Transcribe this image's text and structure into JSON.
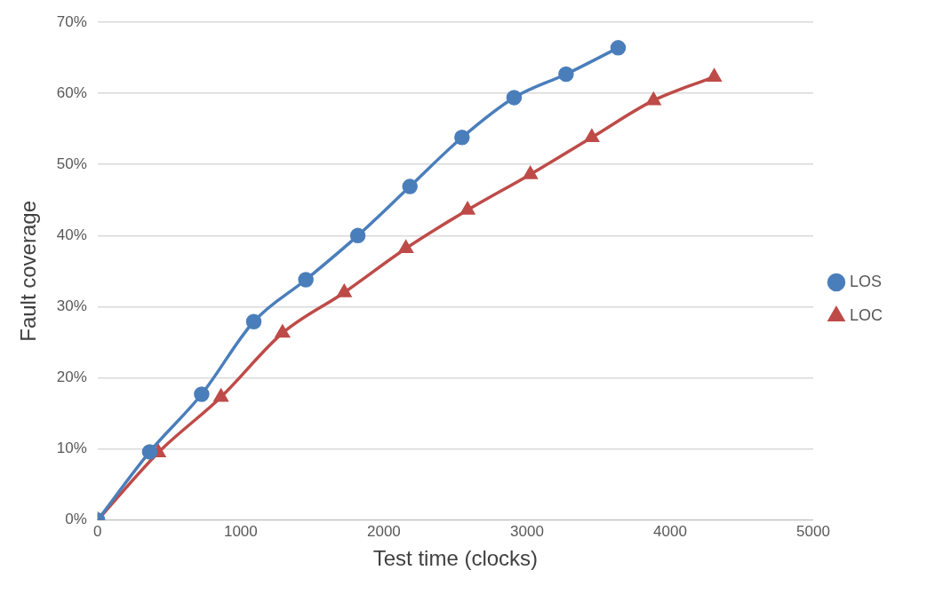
{
  "chart_data": {
    "type": "line",
    "xlabel": "Test time (clocks)",
    "ylabel": "Fault coverage",
    "xlim": [
      0,
      5000
    ],
    "xticks": [
      0,
      1000,
      2000,
      3000,
      4000,
      5000
    ],
    "ylim": [
      0,
      70
    ],
    "yticks": [
      {
        "value": 0,
        "label": "0%"
      },
      {
        "value": 10,
        "label": "10%"
      },
      {
        "value": 20,
        "label": "20%"
      },
      {
        "value": 30,
        "label": "30%"
      },
      {
        "value": 40,
        "label": "40%"
      },
      {
        "value": 50,
        "label": "50%"
      },
      {
        "value": 60,
        "label": "60%"
      },
      {
        "value": 70,
        "label": "70%"
      }
    ],
    "grid": "y",
    "legend": "right",
    "line_style": "solid",
    "series": [
      {
        "name": "LOS",
        "color": "#4a7ebb",
        "marker": "circle",
        "x": [
          0,
          364,
          727,
          1091,
          1455,
          1818,
          2182,
          2546,
          2910,
          3273,
          3637
        ],
        "values": [
          0,
          9.6,
          17.7,
          27.9,
          33.8,
          40.0,
          46.9,
          53.8,
          59.4,
          62.7,
          66.4
        ]
      },
      {
        "name": "LOC",
        "color": "#be4b48",
        "marker": "triangle",
        "x": [
          0,
          424,
          862,
          1292,
          1723,
          2154,
          2585,
          3023,
          3453,
          3884,
          4308
        ],
        "values": [
          0,
          9.5,
          17.3,
          26.3,
          32.0,
          38.2,
          43.6,
          48.6,
          53.8,
          59.0,
          62.3
        ]
      }
    ]
  }
}
